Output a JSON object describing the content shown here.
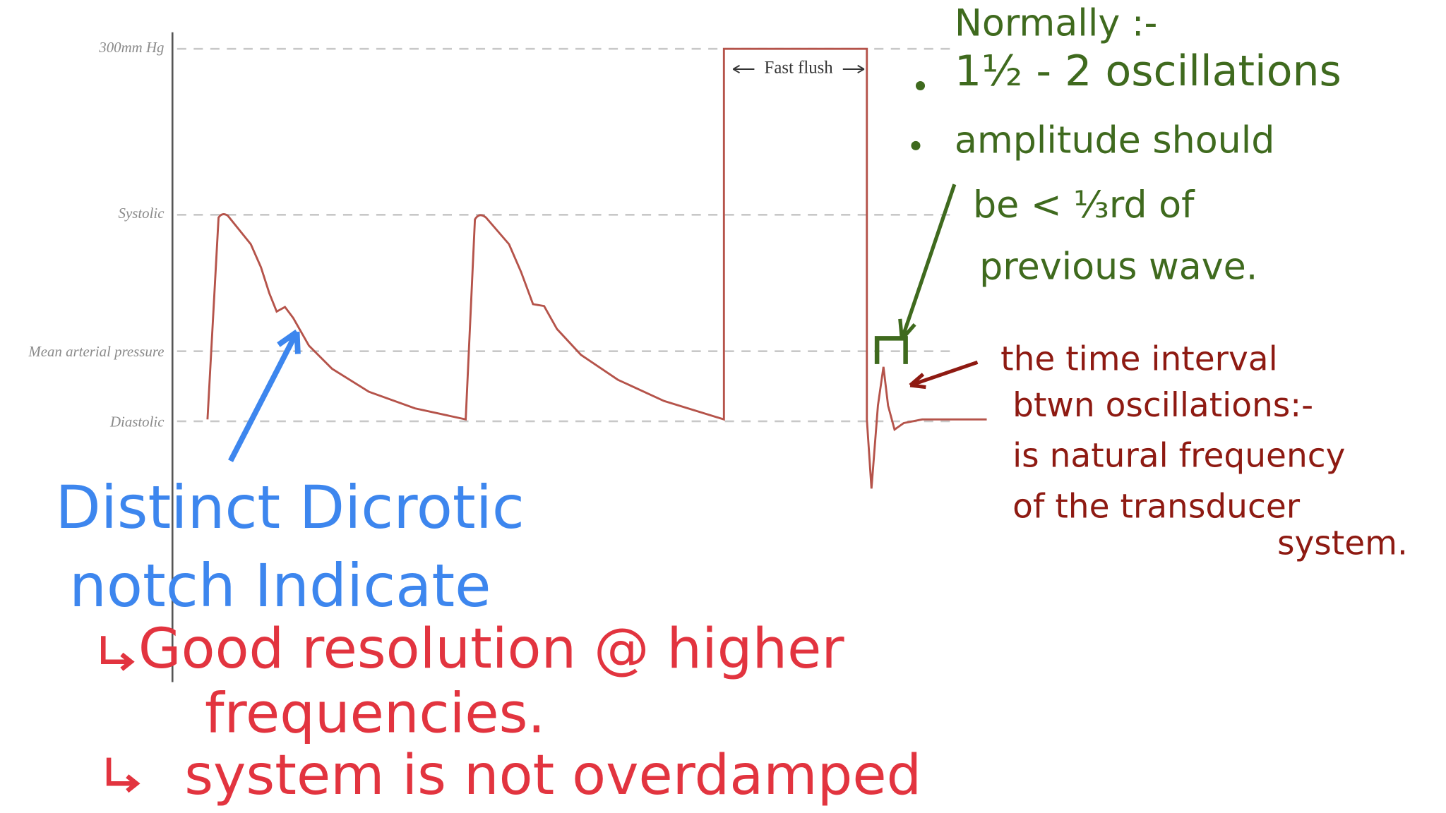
{
  "axis_labels": [
    "300mm Hg",
    "Systolic",
    "Mean arterial pressure",
    "Diastolic"
  ],
  "waveform": {
    "flush_label": "Fast flush"
  },
  "annotations": {
    "normal": {
      "heading": "Normally :-",
      "lines": [
        "1½ - 2 oscillations",
        "amplitude should",
        "be < ⅓rd of",
        "previous wave."
      ]
    },
    "interval": {
      "lines": [
        "the time interval",
        "btwn oscillations:-",
        "is natural frequency",
        "of the transducer",
        "system."
      ]
    },
    "dicrotic": {
      "lines": [
        "Distinct Dicrotic",
        "notch Indicate"
      ]
    },
    "resolution": {
      "lines": [
        "Good resolution @ higher",
        "frequencies.",
        "system is not overdamped"
      ]
    }
  }
}
